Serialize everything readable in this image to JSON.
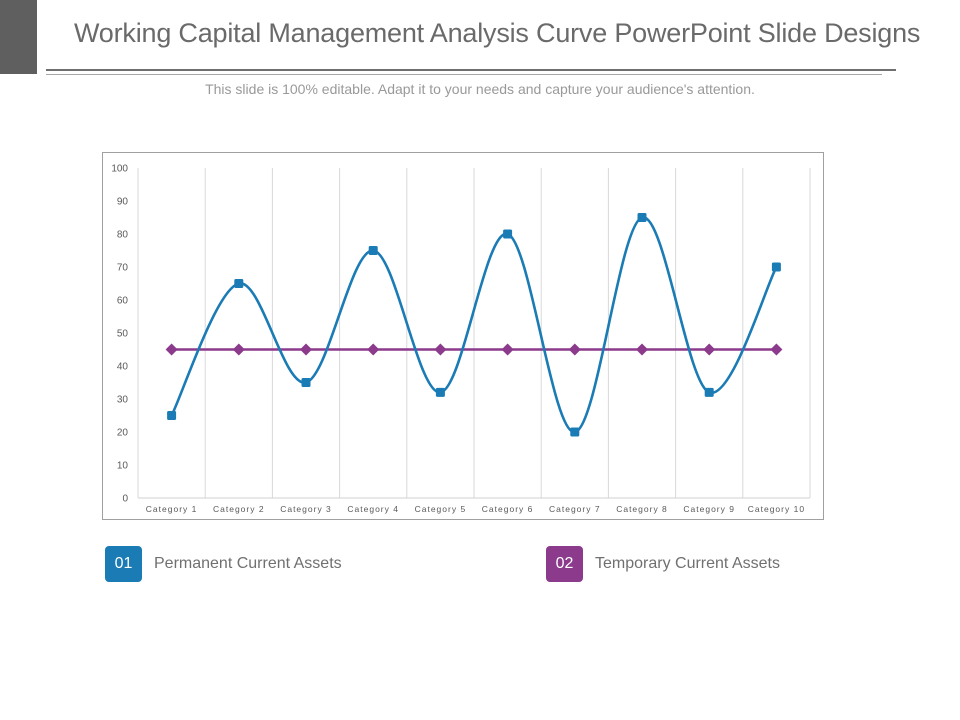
{
  "slide": {
    "title": "Working Capital Management Analysis Curve PowerPoint Slide Designs",
    "subtitle": "This slide is 100% editable. Adapt it to your needs and capture your audience's attention."
  },
  "legend": [
    {
      "number": "01",
      "label": "Permanent Current Assets",
      "color": "#1a7bb5"
    },
    {
      "number": "02",
      "label": "Temporary Current Assets",
      "color": "#8b3a8c"
    }
  ],
  "chart_data": {
    "type": "line",
    "title": "",
    "xlabel": "",
    "ylabel": "",
    "categories": [
      "Category 1",
      "Category 2",
      "Category 3",
      "Category 4",
      "Category 5",
      "Category 6",
      "Category 7",
      "Category 8",
      "Category 9",
      "Category 10"
    ],
    "ylim": [
      0,
      100
    ],
    "yticks": [
      0,
      10,
      20,
      30,
      40,
      50,
      60,
      70,
      80,
      90,
      100
    ],
    "grid": "vertical",
    "series": [
      {
        "name": "Permanent Current Assets",
        "color": "#1a7bb5",
        "marker": "square",
        "smooth": true,
        "values": [
          25,
          65,
          35,
          75,
          32,
          80,
          20,
          85,
          32,
          70
        ]
      },
      {
        "name": "Temporary Current Assets",
        "color": "#8b3a8c",
        "marker": "diamond",
        "smooth": false,
        "values": [
          45,
          45,
          45,
          45,
          45,
          45,
          45,
          45,
          45,
          45
        ]
      }
    ]
  }
}
